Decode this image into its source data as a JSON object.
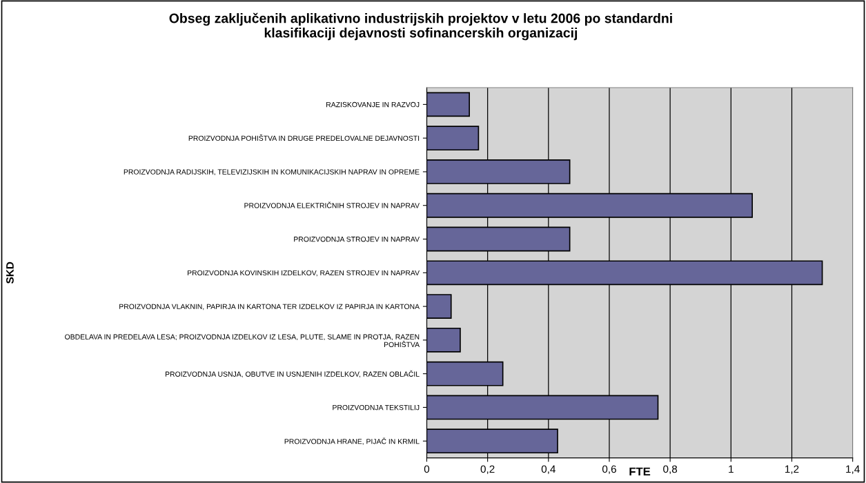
{
  "chart_data": {
    "type": "bar",
    "orientation": "horizontal",
    "title": "Obseg zaključenih aplikativno industrijskih projektov v letu 2006 po standardni\nklasifikaciji dejavnosti sofinancerskih organizacij",
    "xlabel": "FTE",
    "ylabel": "SKD",
    "categories": [
      "RAZISKOVANJE IN RAZVOJ",
      "PROIZVODNJA POHIŠTVA IN DRUGE PREDELOVALNE DEJAVNOSTI",
      "PROIZVODNJA RADIJSKIH, TELEVIZIJSKIH IN KOMUNIKACIJSKIH NAPRAV IN OPREME",
      "PROIZVODNJA ELEKTRIČNIH STROJEV IN NAPRAV",
      "PROIZVODNJA STROJEV IN NAPRAV",
      "PROIZVODNJA KOVINSKIH IZDELKOV, RAZEN STROJEV IN NAPRAV",
      "PROIZVODNJA VLAKNIN, PAPIRJA IN KARTONA TER IZDELKOV IZ PAPIRJA IN KARTONA",
      "OBDELAVA IN PREDELAVA LESA; PROIZVODNJA IZDELKOV IZ LESA, PLUTE, SLAME IN PROTJA, RAZEN\nPOHIŠTVA",
      "PROIZVODNJA USNJA, OBUTVE IN USNJENIH IZDELKOV, RAZEN OBLAČIL",
      "PROIZVODNJA TEKSTILIJ",
      "PROIZVODNJA HRANE, PIJAČ IN KRMIL"
    ],
    "values": [
      0.14,
      0.17,
      0.47,
      1.07,
      0.47,
      1.3,
      0.08,
      0.11,
      0.25,
      0.76,
      0.43
    ],
    "color": "#666699",
    "xlim": [
      0,
      1.4
    ],
    "xticks": [
      0,
      {
        "value": 0.2,
        "label": "0,2"
      },
      {
        "value": 0.4,
        "label": "0,4"
      },
      {
        "value": 0.6,
        "label": "0,6"
      },
      {
        "value": 0.8,
        "label": "0,8"
      },
      1,
      {
        "value": 1.2,
        "label": "1,2"
      },
      {
        "value": 1.4,
        "label": "1,4"
      }
    ],
    "grid": "x",
    "legend": false
  }
}
